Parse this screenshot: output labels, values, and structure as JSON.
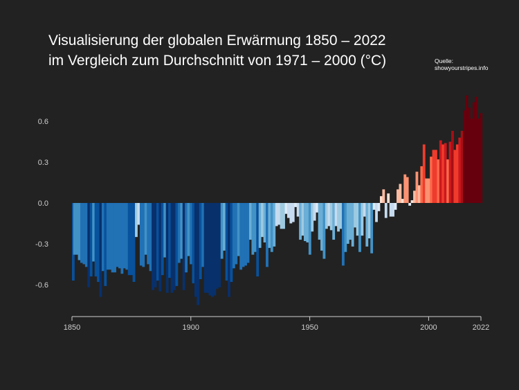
{
  "chart_data": {
    "type": "bar",
    "title_line1": "Visualisierung der globalen Erwärmung 1850 – 2022",
    "title_line2": "im Vergleich zum Durchschnitt von 1971 – 2000 (°C)",
    "source_label": "Quelle:",
    "source_url": "showyourstripes.info",
    "xlabel": "",
    "ylabel": "",
    "x_start": 1850,
    "x_end": 2022,
    "ylim": [
      -0.8,
      0.8
    ],
    "yticks": [
      "0.6",
      "0.3",
      "0.0",
      "-0.3",
      "-0.6"
    ],
    "ytick_values": [
      0.6,
      0.3,
      0.0,
      -0.3,
      -0.6
    ],
    "xticks": [
      "1850",
      "1900",
      "1950",
      "2000",
      "2022"
    ],
    "xtick_values": [
      1850,
      1900,
      1950,
      2000,
      2022
    ],
    "grid": false,
    "values": [
      -0.57,
      -0.38,
      -0.38,
      -0.42,
      -0.44,
      -0.45,
      -0.47,
      -0.62,
      -0.54,
      -0.43,
      -0.54,
      -0.58,
      -0.69,
      -0.5,
      -0.61,
      -0.49,
      -0.49,
      -0.51,
      -0.51,
      -0.47,
      -0.48,
      -0.52,
      -0.48,
      -0.49,
      -0.53,
      -0.53,
      -0.58,
      -0.25,
      -0.16,
      -0.46,
      -0.47,
      -0.38,
      -0.45,
      -0.5,
      -0.64,
      -0.62,
      -0.57,
      -0.65,
      -0.53,
      -0.4,
      -0.66,
      -0.55,
      -0.66,
      -0.64,
      -0.61,
      -0.44,
      -0.41,
      -0.64,
      -0.51,
      -0.39,
      -0.45,
      -0.59,
      -0.69,
      -0.75,
      -0.56,
      -0.47,
      -0.66,
      -0.66,
      -0.68,
      -0.69,
      -0.68,
      -0.63,
      -0.62,
      -0.41,
      -0.35,
      -0.57,
      -0.69,
      -0.58,
      -0.48,
      -0.45,
      -0.39,
      -0.49,
      -0.47,
      -0.46,
      -0.44,
      -0.27,
      -0.38,
      -0.36,
      -0.54,
      -0.33,
      -0.25,
      -0.29,
      -0.47,
      -0.33,
      -0.36,
      -0.32,
      -0.17,
      -0.16,
      -0.19,
      -0.19,
      -0.08,
      -0.11,
      -0.15,
      -0.14,
      -0.03,
      -0.1,
      -0.27,
      -0.24,
      -0.28,
      -0.29,
      -0.38,
      -0.21,
      -0.13,
      -0.07,
      -0.27,
      -0.35,
      -0.41,
      -0.19,
      -0.17,
      -0.2,
      -0.27,
      -0.17,
      -0.21,
      -0.19,
      -0.46,
      -0.36,
      -0.3,
      -0.27,
      -0.32,
      -0.18,
      -0.24,
      -0.36,
      -0.24,
      -0.1,
      -0.32,
      -0.26,
      -0.37,
      -0.05,
      -0.14,
      -0.06,
      0.05,
      0.1,
      -0.11,
      0.07,
      -0.1,
      -0.1,
      -0.05,
      0.1,
      0.14,
      0.03,
      0.21,
      0.19,
      -0.02,
      0.02,
      0.09,
      0.23,
      0.13,
      0.27,
      0.43,
      0.18,
      0.18,
      0.34,
      0.39,
      0.39,
      0.32,
      0.46,
      0.43,
      0.44,
      0.32,
      0.45,
      0.53,
      0.39,
      0.43,
      0.48,
      0.53,
      0.68,
      0.79,
      0.7,
      0.62,
      0.74,
      0.78,
      0.62,
      0.66
    ],
    "palette": [
      "#08306b",
      "#08519c",
      "#2171b5",
      "#4292c6",
      "#6baed6",
      "#9ecae1",
      "#c6dbef",
      "#deebf7",
      "#fee0d2",
      "#fcbba1",
      "#fc9272",
      "#fb6a4a",
      "#ef3b2c",
      "#cb181d",
      "#a50f15",
      "#67000d"
    ],
    "background": "#222222"
  }
}
